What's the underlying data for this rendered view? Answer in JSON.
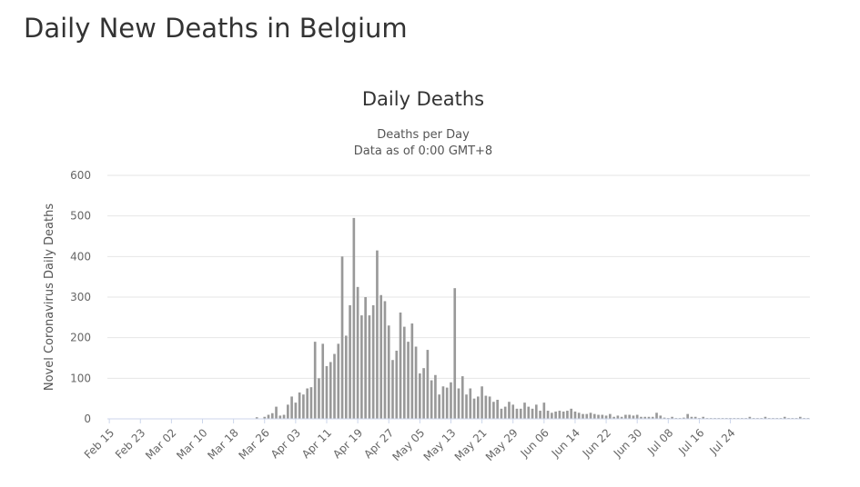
{
  "page": {
    "title": "Daily New Deaths in Belgium"
  },
  "chart_data": {
    "type": "bar",
    "title": "Daily Deaths",
    "subtitle": [
      "Deaths per Day",
      "Data as of 0:00 GMT+8"
    ],
    "xlabel": "",
    "ylabel": "Novel Coronavirus Daily Deaths",
    "ylim": [
      0,
      600
    ],
    "yticks": [
      0,
      100,
      200,
      300,
      400,
      500,
      600
    ],
    "grid": true,
    "legend": "none",
    "colors": {
      "bar": "#999999",
      "grid": "#e6e6e6",
      "axis": "#ccd6eb"
    },
    "xtick_labels": [
      "Feb 15",
      "Feb 23",
      "Mar 02",
      "Mar 10",
      "Mar 18",
      "Mar 26",
      "Apr 03",
      "Apr 11",
      "Apr 19",
      "Apr 27",
      "May 05",
      "May 13",
      "May 21",
      "May 29",
      "Jun 06",
      "Jun 14",
      "Jun 22",
      "Jun 30",
      "Jul 08",
      "Jul 16",
      "Jul 24"
    ],
    "start_date": "Feb 15",
    "series": [
      {
        "values": [
          0,
          0,
          0,
          0,
          0,
          0,
          0,
          0,
          0,
          0,
          0,
          0,
          0,
          0,
          0,
          0,
          0,
          0,
          0,
          0,
          0,
          0,
          0,
          0,
          0,
          0,
          0,
          0,
          0,
          0,
          0,
          0,
          1,
          0,
          0,
          0,
          1,
          0,
          4,
          0,
          5,
          10,
          14,
          30,
          8,
          10,
          35,
          55,
          40,
          65,
          60,
          75,
          78,
          190,
          100,
          185,
          130,
          140,
          160,
          185,
          400,
          205,
          280,
          495,
          325,
          255,
          300,
          255,
          280,
          415,
          305,
          290,
          230,
          145,
          168,
          262,
          227,
          190,
          235,
          178,
          112,
          125,
          170,
          95,
          108,
          60,
          80,
          77,
          90,
          322,
          75,
          105,
          60,
          75,
          50,
          55,
          80,
          57,
          55,
          42,
          47,
          25,
          30,
          42,
          35,
          25,
          25,
          40,
          30,
          25,
          35,
          20,
          40,
          20,
          15,
          18,
          20,
          18,
          20,
          25,
          18,
          15,
          12,
          12,
          15,
          12,
          10,
          10,
          8,
          12,
          5,
          8,
          5,
          10,
          10,
          8,
          10,
          5,
          5,
          5,
          5,
          15,
          8,
          3,
          2,
          5,
          2,
          2,
          3,
          12,
          5,
          5,
          2,
          5,
          2,
          2,
          2,
          2,
          2,
          2,
          2,
          2,
          2,
          2,
          2,
          5,
          2,
          2,
          2,
          5,
          2,
          2,
          2,
          2,
          5,
          2,
          2,
          2,
          5,
          2,
          2
        ]
      }
    ]
  }
}
